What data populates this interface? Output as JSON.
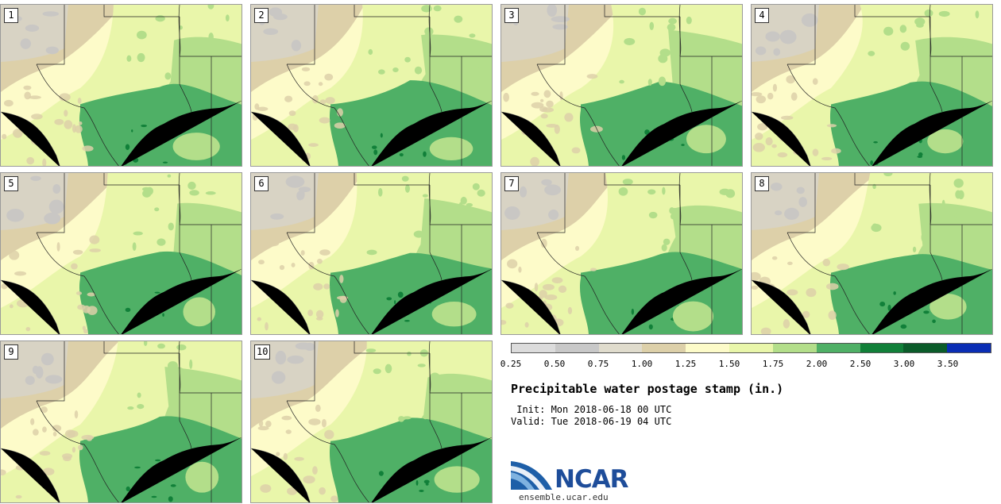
{
  "panels": [
    {
      "label": "1"
    },
    {
      "label": "2"
    },
    {
      "label": "3"
    },
    {
      "label": "4"
    },
    {
      "label": "5"
    },
    {
      "label": "6"
    },
    {
      "label": "7"
    },
    {
      "label": "8"
    },
    {
      "label": "9"
    },
    {
      "label": "10"
    }
  ],
  "colorbar": {
    "colors": [
      "#dcdcdc",
      "#c8c8c8",
      "#e0dccd",
      "#ddd0a9",
      "#fdfbc9",
      "#e9f6aa",
      "#b3de8a",
      "#4fb066",
      "#118039",
      "#0b5c2a",
      "#0a2db4"
    ],
    "ticks": [
      "0.25",
      "0.50",
      "0.75",
      "1.00",
      "1.25",
      "1.50",
      "1.75",
      "2.00",
      "2.50",
      "3.00",
      "3.50"
    ]
  },
  "title": "Precipitable water postage stamp (in.)",
  "init": " Init: Mon 2018-06-18 00 UTC",
  "valid": "Valid: Tue 2018-06-19 04 UTC",
  "logo": {
    "name": "NCAR",
    "url_text": "ensemble.ucar.edu"
  }
}
